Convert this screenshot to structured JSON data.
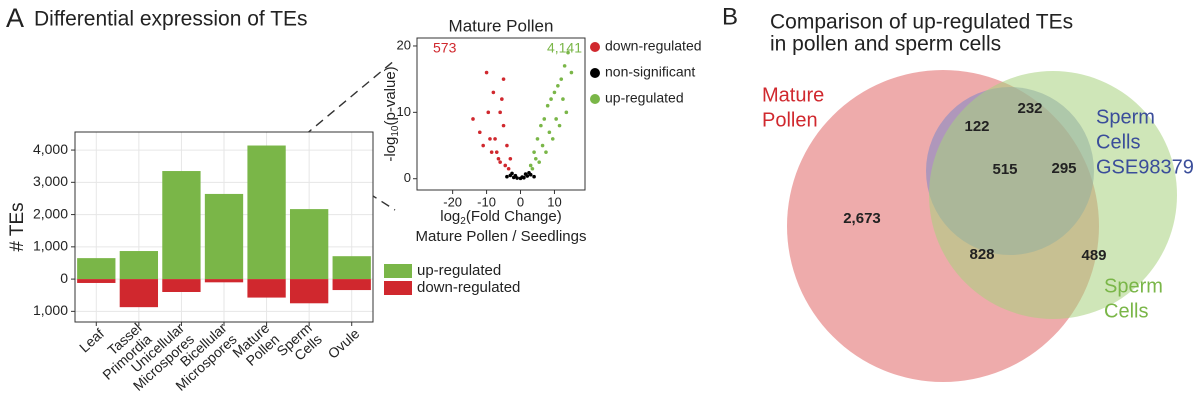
{
  "chart_data": [
    {
      "type": "bar",
      "panel": "A",
      "title": "Differential expression of TEs",
      "ylabel": "# TEs",
      "categories": [
        [
          "Leaf"
        ],
        [
          "Tassel",
          "Primordia"
        ],
        [
          "Unicellular",
          "Microspores"
        ],
        [
          "Bicellular",
          "Microspores"
        ],
        [
          "Mature",
          "Pollen"
        ],
        [
          "Sperm",
          "Cells"
        ],
        [
          "Ovule"
        ]
      ],
      "series": [
        {
          "name": "up-regulated",
          "color": "#7ab648",
          "values": [
            650,
            870,
            3350,
            2640,
            4141,
            2170,
            710
          ]
        },
        {
          "name": "down-regulated",
          "color": "#d0282e",
          "values": [
            -120,
            -870,
            -400,
            -100,
            -573,
            -750,
            -340
          ]
        }
      ],
      "ylim": [
        -1330,
        4560
      ],
      "yticks": [
        {
          "value": -1000,
          "label": "1,000"
        },
        0,
        {
          "value": 1000,
          "label": "1,000"
        },
        {
          "value": 2000,
          "label": "2,000"
        },
        {
          "value": 3000,
          "label": "3,000"
        },
        {
          "value": 4000,
          "label": "4,000"
        }
      ],
      "grid": true
    },
    {
      "type": "scatter",
      "title": "Mature Pollen",
      "ylabel": [
        "-log",
        "10",
        "(p-value)"
      ],
      "xlabel": [
        "log",
        "2",
        "(Fold Change)"
      ],
      "subtitle": "Mature Pollen / Seedlings",
      "annotations": [
        {
          "text": "573",
          "color": "#d0282e"
        },
        {
          "text": "4,141",
          "color": "#7ab648"
        }
      ],
      "series": [
        {
          "name": "down-regulated",
          "color": "#d0282e",
          "x": [
            -3,
            -4,
            -5,
            -6,
            -7,
            -8,
            -9,
            -10,
            -12,
            -14,
            -4.5,
            -5.5,
            -6.5,
            -7.5,
            -3.5,
            -8.5,
            -11,
            -5,
            -6,
            -9.5
          ],
          "y": [
            3,
            5,
            8,
            10,
            4,
            13,
            6,
            16,
            7,
            9,
            2,
            12,
            3,
            6,
            1.5,
            4,
            5,
            15,
            2.5,
            10
          ]
        },
        {
          "name": "non-significant",
          "color": "#000000",
          "x": [
            -4,
            -3,
            -2,
            -1,
            0,
            1,
            2,
            3,
            4,
            -2.5,
            1.5,
            2.5,
            -1.5,
            0.5
          ],
          "y": [
            0.3,
            0.5,
            0.2,
            0.1,
            0.05,
            0.15,
            0.4,
            0.6,
            0.3,
            0.8,
            0.7,
            0.9,
            0.45,
            0.25
          ]
        },
        {
          "name": "up-regulated",
          "color": "#7ab648",
          "x": [
            3,
            4,
            5,
            6,
            7,
            8,
            9,
            10,
            11,
            12,
            13,
            14,
            4.5,
            6.5,
            8.5,
            10.5,
            12.5,
            15,
            3.5,
            5.5,
            7.5,
            9.5,
            11.5,
            13.5
          ],
          "y": [
            2,
            4,
            6,
            8,
            9,
            11,
            12,
            13,
            14,
            15,
            17,
            19,
            3,
            5,
            7,
            9,
            12,
            16,
            1.5,
            2.5,
            4,
            6,
            8,
            10
          ]
        }
      ],
      "xlim": [
        -30.5,
        19
      ],
      "xticks": [
        -20,
        -10,
        0,
        10
      ],
      "ylim": [
        -1.7,
        21.2
      ],
      "yticks": [
        0,
        10,
        20
      ],
      "grid": false
    },
    {
      "type": "venn",
      "panel": "B",
      "title": [
        "Comparison of up-regulated TEs",
        "in pollen and sperm cells"
      ],
      "sets": [
        {
          "name": [
            "Mature",
            "Pollen"
          ],
          "color": "#d0282e",
          "fill": "#e06666"
        },
        {
          "name": [
            "Sperm",
            "Cells",
            "GSE98379"
          ],
          "color": "#3a4d9a",
          "fill": "#7c86c8"
        },
        {
          "name": [
            "Sperm",
            "Cells"
          ],
          "color": "#7ab648",
          "fill": "#a8d27e"
        }
      ],
      "values": [
        2673,
        232,
        489,
        122,
        828,
        295,
        515
      ],
      "value_labels": [
        "2,673",
        "232",
        "489",
        "122",
        "828",
        "295",
        "515"
      ]
    }
  ]
}
